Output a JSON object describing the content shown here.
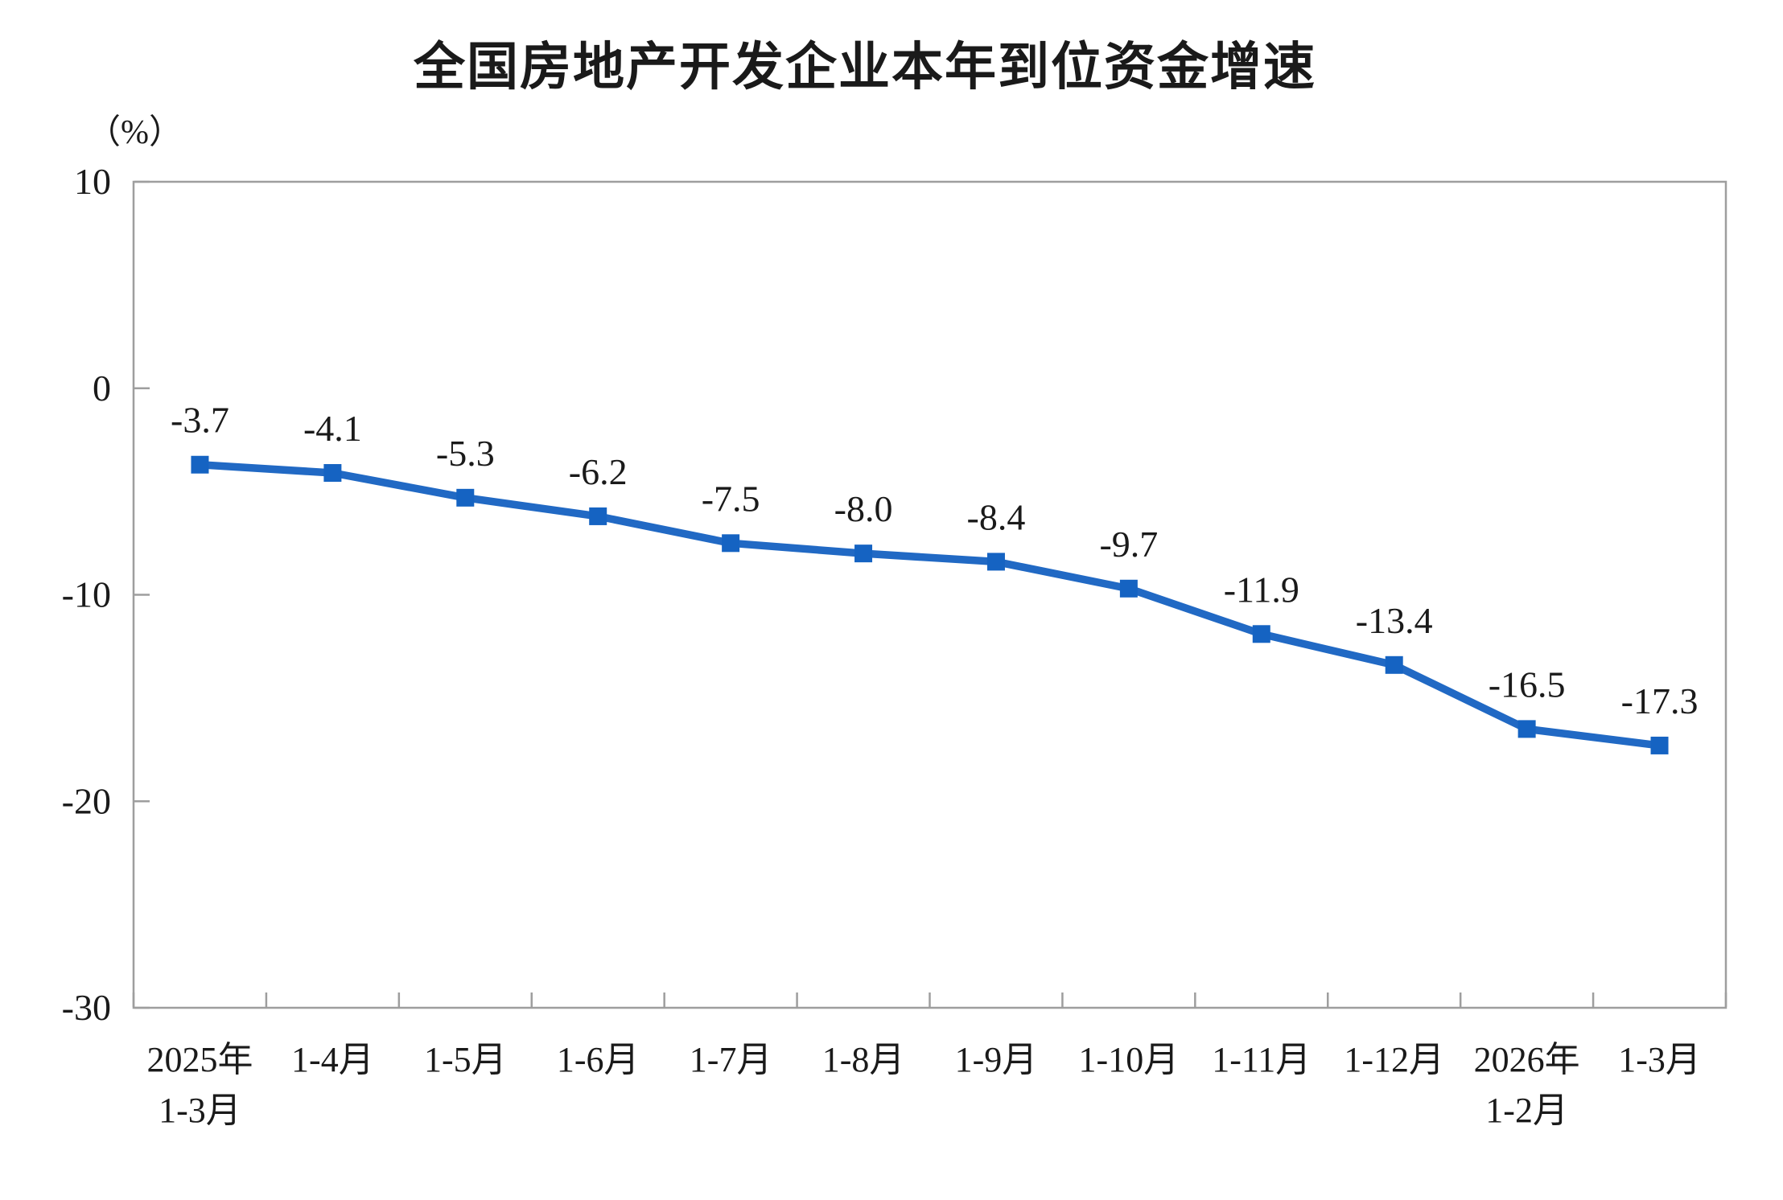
{
  "page": {
    "background": "#ffffff"
  },
  "chart_data": {
    "type": "line",
    "title": "全国房地产开发企业本年到位资金增速",
    "unit_label": "（%）",
    "categories": [
      "2025年\n1-3月",
      "1-4月",
      "1-5月",
      "1-6月",
      "1-7月",
      "1-8月",
      "1-9月",
      "1-10月",
      "1-11月",
      "1-12月",
      "2026年\n1-2月",
      "1-3月"
    ],
    "values": [
      -3.7,
      -4.1,
      -5.3,
      -6.2,
      -7.5,
      -8.0,
      -8.4,
      -9.7,
      -11.9,
      -13.4,
      -16.5,
      -17.3
    ],
    "data_labels": [
      "-3.7",
      "-4.1",
      "-5.3",
      "-6.2",
      "-7.5",
      "-8.0",
      "-8.4",
      "-9.7",
      "-11.9",
      "-13.4",
      "-16.5",
      "-17.3"
    ],
    "yticks": [
      10,
      0,
      -10,
      -20,
      -30
    ],
    "ytick_labels": [
      "10",
      "0",
      "-10",
      "-20",
      "-30"
    ],
    "ylim": [
      -30,
      10
    ],
    "grid": false,
    "legend": "none",
    "marker_shape": "square",
    "colors": {
      "line": "#2169C4",
      "marker": "#1563C2",
      "axis": "#9E9E9E",
      "text": "#1A1A1A"
    }
  }
}
